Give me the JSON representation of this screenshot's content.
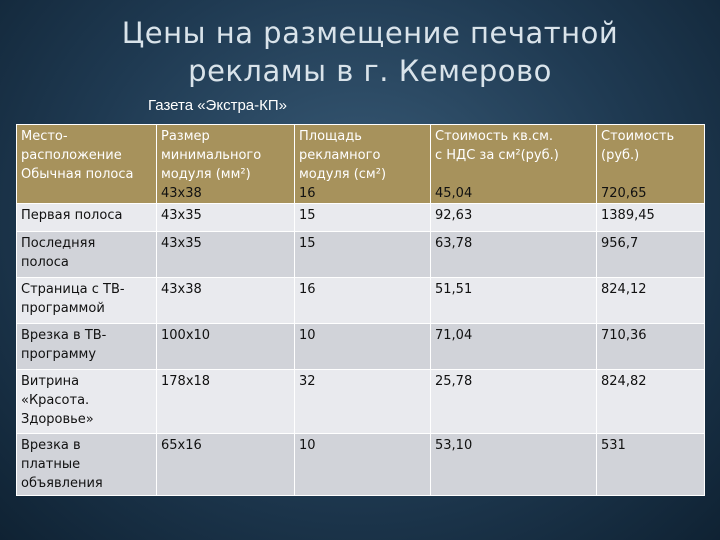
{
  "title_lines": [
    "Цены на размещение печатной",
    "рекламы в г. Кемерово"
  ],
  "subtitle": "Газета «Экстра-КП»",
  "table": {
    "headers": [
      [
        "Место-",
        "расположение"
      ],
      [
        "Размер",
        "минимального",
        "модуля (мм²)"
      ],
      [
        "Площадь",
        "рекламного",
        "модуля (см²)"
      ],
      [
        "Стоимость кв.см.",
        "с НДС за см²(руб.)"
      ],
      [
        "Стоимость",
        "(руб.)"
      ]
    ],
    "first_row": [
      "Обычная полоса",
      "43х38",
      "16",
      "45,04",
      "720,65"
    ],
    "rows": [
      [
        [
          "Первая полоса"
        ],
        "43х35",
        "15",
        "92,63",
        "1389,45"
      ],
      [
        [
          "Последняя",
          "полоса"
        ],
        "43х35",
        "15",
        "63,78",
        "956,7"
      ],
      [
        [
          "Страница с ТВ-",
          "программой"
        ],
        "43х38",
        "16",
        "51,51",
        "824,12"
      ],
      [
        [
          "Врезка в ТВ-",
          "программу"
        ],
        "100х10",
        "10",
        "71,04",
        "710,36"
      ],
      [
        [
          "Витрина",
          "«Красота.",
          "Здоровье»"
        ],
        "178х18",
        "32",
        "25,78",
        "824,82"
      ],
      [
        [
          "Врезка в",
          "платные",
          "объявления"
        ],
        "65х16",
        "10",
        "53,10",
        "531"
      ]
    ]
  }
}
